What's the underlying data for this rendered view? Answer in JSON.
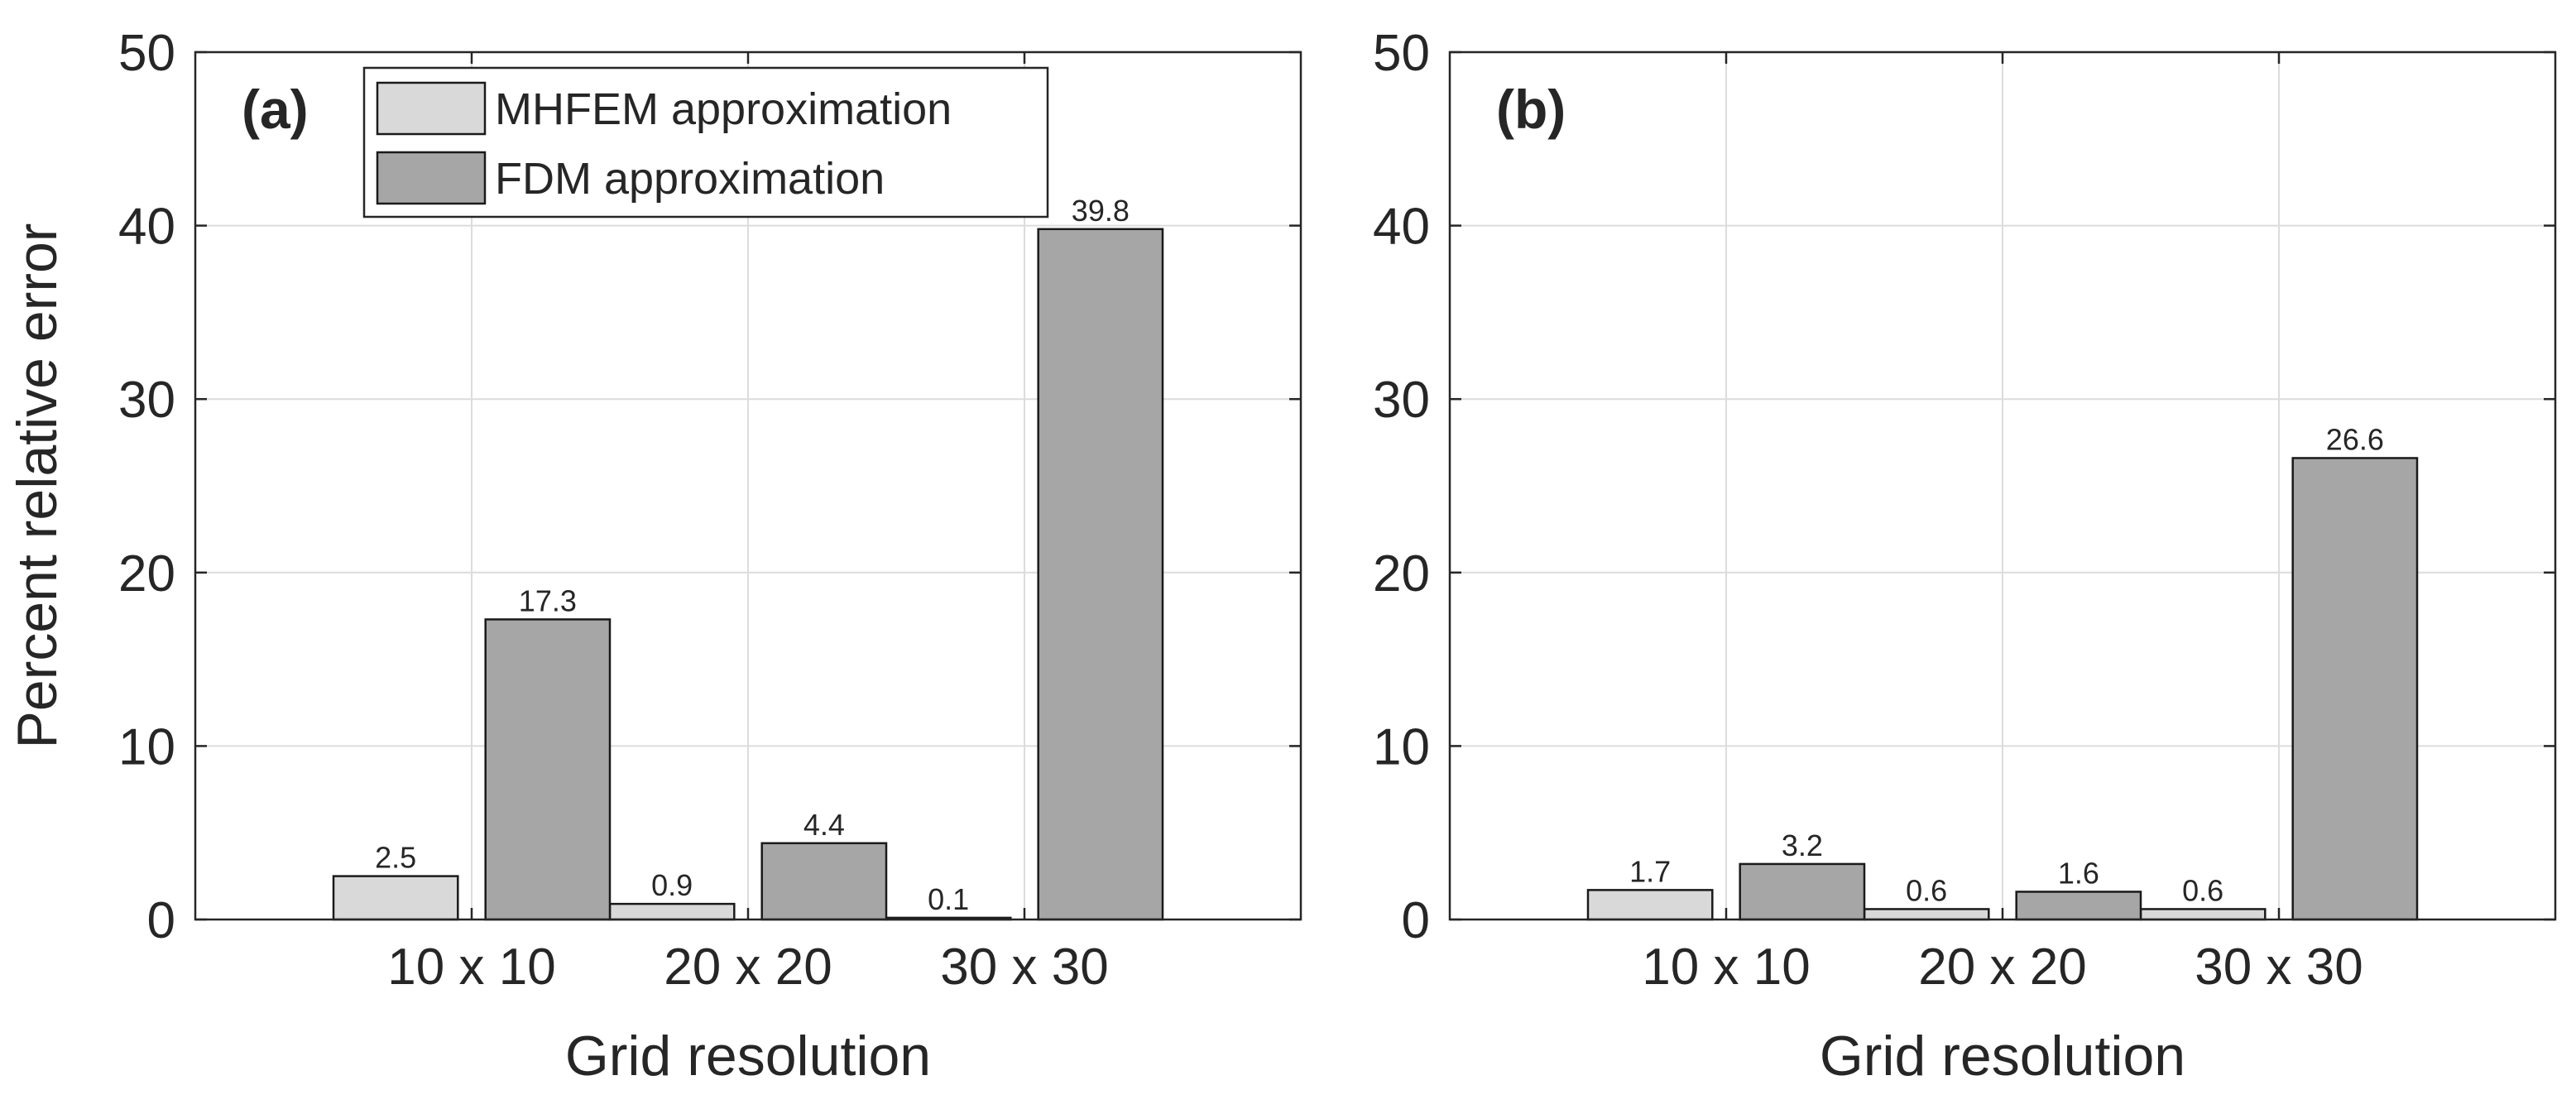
{
  "chart_data": [
    {
      "type": "bar",
      "panel_label": "(a)",
      "categories": [
        "10 x 10",
        "20 x 20",
        "30 x 30"
      ],
      "series": [
        {
          "name": "MHFEM approximation",
          "values": [
            2.5,
            0.9,
            0.1
          ]
        },
        {
          "name": "FDM approximation",
          "values": [
            17.3,
            4.4,
            39.8
          ]
        }
      ],
      "data_labels": [
        [
          "2.5",
          "0.9",
          "0.1"
        ],
        [
          "17.3",
          "4.4",
          "39.8"
        ]
      ],
      "title": "",
      "xlabel": "Grid resolution",
      "ylabel": "Percent relative error",
      "ylim": [
        0,
        50
      ],
      "yticks": [
        0,
        10,
        20,
        30,
        40,
        50
      ],
      "grid": true,
      "legend": {
        "position": "top",
        "entries": [
          "MHFEM approximation",
          "FDM approximation"
        ]
      }
    },
    {
      "type": "bar",
      "panel_label": "(b)",
      "categories": [
        "10 x 10",
        "20 x 20",
        "30 x 30"
      ],
      "series": [
        {
          "name": "MHFEM approximation",
          "values": [
            1.7,
            0.6,
            0.6
          ]
        },
        {
          "name": "FDM approximation",
          "values": [
            3.2,
            1.6,
            26.6
          ]
        }
      ],
      "data_labels": [
        [
          "1.7",
          "0.6",
          "0.6"
        ],
        [
          "3.2",
          "1.6",
          "26.6"
        ]
      ],
      "title": "",
      "xlabel": "Grid resolution",
      "ylabel": "",
      "ylim": [
        0,
        50
      ],
      "yticks": [
        0,
        10,
        20,
        30,
        40,
        50
      ],
      "grid": true,
      "legend": null
    }
  ],
  "colors": {
    "mhfem": "#d9d9d9",
    "fdm": "#a6a6a6",
    "grid": "#dcdcdc",
    "axis": "#262626",
    "bar_edge": "#1a1a1a"
  }
}
